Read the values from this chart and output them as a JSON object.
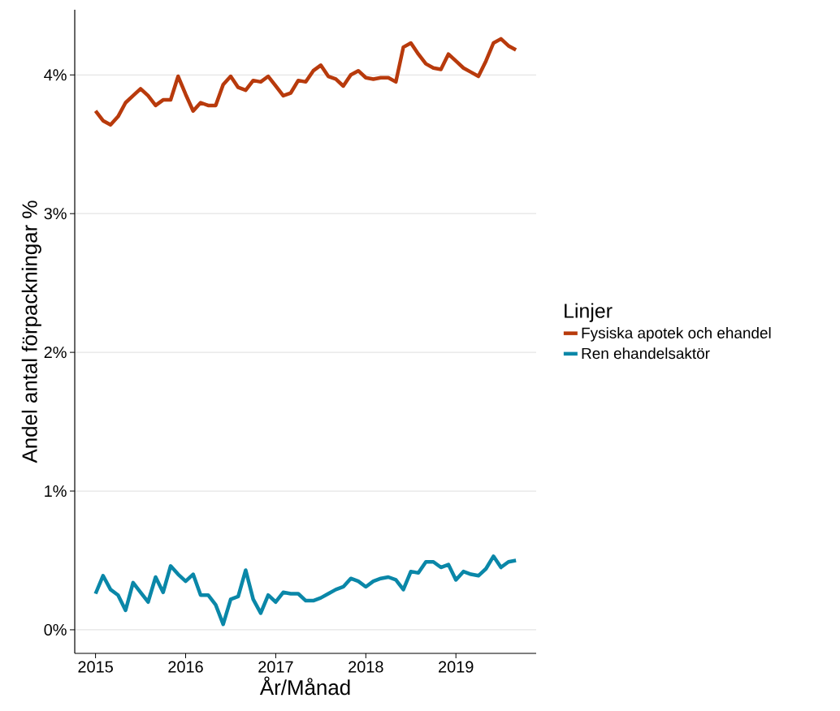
{
  "chart_data": {
    "type": "line",
    "xlabel": "År/Månad",
    "ylabel": "Andel antal förpackningar %",
    "legend_title": "Linjer",
    "legend": "right",
    "grid": "y",
    "x": [
      "2015-01",
      "2015-02",
      "2015-03",
      "2015-04",
      "2015-05",
      "2015-06",
      "2015-07",
      "2015-08",
      "2015-09",
      "2015-10",
      "2015-11",
      "2015-12",
      "2016-01",
      "2016-02",
      "2016-03",
      "2016-04",
      "2016-05",
      "2016-06",
      "2016-07",
      "2016-08",
      "2016-09",
      "2016-10",
      "2016-11",
      "2016-12",
      "2017-01",
      "2017-02",
      "2017-03",
      "2017-04",
      "2017-05",
      "2017-06",
      "2017-07",
      "2017-08",
      "2017-09",
      "2017-10",
      "2017-11",
      "2017-12",
      "2018-01",
      "2018-02",
      "2018-03",
      "2018-04",
      "2018-05",
      "2018-06",
      "2018-07",
      "2018-08",
      "2018-09",
      "2018-10",
      "2018-11",
      "2018-12",
      "2019-01",
      "2019-02",
      "2019-03",
      "2019-04",
      "2019-05",
      "2019-06",
      "2019-07",
      "2019-08",
      "2019-09"
    ],
    "series": [
      {
        "name": "Fysiska apotek och ehandel",
        "color": "#b83a0c",
        "values": [
          3.74,
          3.67,
          3.64,
          3.7,
          3.8,
          3.85,
          3.9,
          3.85,
          3.78,
          3.82,
          3.82,
          3.99,
          3.86,
          3.74,
          3.8,
          3.78,
          3.78,
          3.93,
          3.99,
          3.91,
          3.89,
          3.96,
          3.95,
          3.99,
          3.92,
          3.85,
          3.87,
          3.96,
          3.95,
          4.03,
          4.07,
          3.99,
          3.97,
          3.92,
          4.0,
          4.03,
          3.98,
          3.97,
          3.98,
          3.98,
          3.95,
          4.2,
          4.23,
          4.15,
          4.08,
          4.05,
          4.04,
          4.15,
          4.1,
          4.05,
          4.02,
          3.99,
          4.1,
          4.23,
          4.26,
          4.21,
          4.18
        ]
      },
      {
        "name": "Ren ehandelsaktör",
        "color": "#0a87a8",
        "values": [
          0.26,
          0.39,
          0.29,
          0.25,
          0.14,
          0.34,
          0.27,
          0.2,
          0.38,
          0.27,
          0.46,
          0.4,
          0.35,
          0.4,
          0.25,
          0.25,
          0.18,
          0.04,
          0.22,
          0.24,
          0.43,
          0.22,
          0.12,
          0.25,
          0.2,
          0.27,
          0.26,
          0.26,
          0.21,
          0.21,
          0.23,
          0.26,
          0.29,
          0.31,
          0.37,
          0.35,
          0.31,
          0.35,
          0.37,
          0.38,
          0.36,
          0.29,
          0.42,
          0.41,
          0.49,
          0.49,
          0.45,
          0.47,
          0.36,
          0.42,
          0.4,
          0.39,
          0.44,
          0.53,
          0.45,
          0.49,
          0.5
        ]
      }
    ],
    "xlim": [
      "2014-10-08",
      "2019-11-22"
    ],
    "ylim": [
      -0.17,
      4.47
    ],
    "xticks": [
      "2015",
      "2016",
      "2017",
      "2018",
      "2019"
    ],
    "yticks": [
      {
        "value": 0,
        "label": "0%"
      },
      {
        "value": 1,
        "label": "1%"
      },
      {
        "value": 2,
        "label": "2%"
      },
      {
        "value": 3,
        "label": "3%"
      },
      {
        "value": 4,
        "label": "4%"
      }
    ]
  }
}
